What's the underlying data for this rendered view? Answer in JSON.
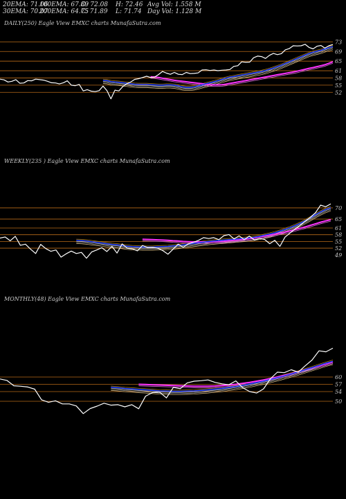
{
  "stats": {
    "row1": [
      "20EMA: 71.06",
      "100EMA: 67.89",
      "O: 72.08",
      "H: 72.46",
      "Avg Vol: 1.558  M"
    ],
    "row2": [
      "30EMA: 70.07",
      "200EMA: 64.75",
      "C: 71.89",
      "L: 71.74",
      "Day Vol: 1.128 M"
    ]
  },
  "colors": {
    "background": "#000000",
    "price": "#ffffff",
    "ema_short": "#1e3cff",
    "ema_long": "#ff33ff",
    "level": "#b86a18"
  },
  "chart_data": [
    {
      "type": "line",
      "title": "DAILY(250) Eagle  View  EMXC charts MunafaSutra.com",
      "ylim": [
        27,
        76
      ],
      "yticks": [
        73,
        69,
        65,
        61,
        58,
        55,
        52
      ],
      "levels": [
        73,
        69,
        65,
        61,
        58,
        55,
        52
      ],
      "series": [
        {
          "role": "price",
          "values": [
            57.5,
            57.2,
            56.3,
            56.6,
            57.3,
            55.8,
            55.9,
            56.9,
            56.8,
            57.5,
            57.3,
            57.1,
            56.6,
            56.0,
            55.9,
            55.5,
            56.0,
            56.8,
            55.0,
            54.8,
            55.3,
            52.6,
            53.1,
            52.5,
            52.3,
            52.7,
            54.6,
            52.7,
            49.3,
            52.9,
            52.6,
            54.4,
            55.6,
            56.3,
            57.4,
            57.7,
            58.2,
            58.7,
            58.2,
            58.3,
            59.4,
            60.7,
            60.0,
            59.5,
            60.3,
            59.5,
            59.4,
            60.3,
            59.8,
            59.9,
            60.1,
            61.3,
            61.4,
            61.1,
            61.3,
            61.0,
            61.2,
            61.3,
            61.5,
            62.8,
            63.1,
            64.7,
            64.5,
            64.6,
            66.4,
            67.1,
            66.9,
            66.1,
            67.4,
            68.2,
            67.7,
            68.1,
            69.7,
            70.2,
            71.4,
            71.3,
            71.4,
            72.0,
            70.7,
            70.1,
            71.2,
            71.5,
            70.4,
            71.4,
            71.9
          ]
        },
        {
          "role": "ema_short",
          "values": [
            57.0,
            56.9,
            56.5,
            56.3,
            56.2,
            56.0,
            55.8,
            55.6,
            55.4,
            55.3,
            55.3,
            55.3,
            55.2,
            55.1,
            55.0,
            55.0,
            55.1,
            55.1,
            55.0,
            54.7,
            54.3,
            54.1,
            54.1,
            54.3,
            54.7,
            55.1,
            55.6,
            56.0,
            56.4,
            56.9,
            57.4,
            57.9,
            58.3,
            58.6,
            58.9,
            59.2,
            59.5,
            59.8,
            60.1,
            60.4,
            60.7,
            61.1,
            61.6,
            62.1,
            62.7,
            63.3,
            64.0,
            64.7,
            65.4,
            66.1,
            66.8,
            67.5,
            68.2,
            68.7,
            69.1,
            69.5,
            70.1,
            70.6,
            71.06
          ]
        },
        {
          "role": "ema_long",
          "values": [
            58.5,
            58.4,
            58.2,
            57.9,
            57.6,
            57.3,
            57.0,
            56.8,
            56.6,
            56.4,
            56.2,
            56.0,
            55.8,
            55.6,
            55.4,
            55.2,
            55.1,
            55.1,
            55.2,
            55.4,
            55.7,
            56.0,
            56.3,
            56.6,
            56.9,
            57.2,
            57.5,
            57.8,
            58.1,
            58.4,
            58.7,
            59.0,
            59.3,
            59.6,
            59.9,
            60.2,
            60.5,
            60.8,
            61.2,
            61.6,
            62.0,
            62.3,
            62.7,
            63.1,
            63.5,
            64.1,
            64.75
          ]
        }
      ]
    },
    {
      "type": "line",
      "title": "WEEKLY(235                ) Eagle  View  EMXC charts MunafaSutra.com",
      "ylim": [
        35,
        74
      ],
      "yticks": [
        70,
        65,
        61,
        58,
        55,
        52,
        49
      ],
      "levels": [
        70,
        65,
        61,
        58,
        55,
        52
      ],
      "series": [
        {
          "role": "price",
          "values": [
            56.5,
            57.0,
            55.3,
            57.3,
            53.3,
            53.8,
            51.6,
            49.6,
            53.7,
            51.8,
            50.6,
            51.2,
            48.0,
            49.5,
            50.7,
            49.6,
            50.1,
            47.5,
            50.3,
            51.2,
            52.2,
            50.5,
            52.8,
            49.8,
            53.9,
            52.0,
            51.7,
            50.8,
            53.2,
            52.3,
            52.4,
            52.0,
            50.9,
            49.3,
            51.5,
            53.8,
            52.4,
            53.9,
            54.6,
            55.5,
            56.7,
            56.3,
            56.7,
            55.8,
            57.6,
            58.1,
            56.1,
            57.5,
            55.8,
            57.4,
            55.6,
            56.3,
            55.9,
            54.0,
            55.5,
            52.8,
            56.9,
            58.8,
            60.6,
            62.2,
            64.1,
            65.8,
            67.8,
            71.2,
            70.5,
            71.8
          ]
        },
        {
          "role": "ema_short",
          "values": [
            55.5,
            55.4,
            55.2,
            54.9,
            54.6,
            54.3,
            54.0,
            53.7,
            53.5,
            53.2,
            52.9,
            52.7,
            52.6,
            52.5,
            52.5,
            52.5,
            52.6,
            52.7,
            52.8,
            53.0,
            53.2,
            53.5,
            53.8,
            54.1,
            54.4,
            54.7,
            55.0,
            55.2,
            55.4,
            55.6,
            55.8,
            56.0,
            56.2,
            56.4,
            56.6,
            56.9,
            57.3,
            57.8,
            58.3,
            58.9,
            59.6,
            60.4,
            61.2,
            62.1,
            63.1,
            64.3,
            65.6,
            67.0,
            68.2,
            69.3,
            70.07
          ]
        },
        {
          "role": "ema_long",
          "values": [
            56.0,
            55.9,
            55.8,
            55.7,
            55.6,
            55.5,
            55.3,
            55.2,
            55.0,
            54.9,
            54.8,
            54.8,
            54.8,
            54.8,
            54.9,
            55.0,
            55.1,
            55.3,
            55.5,
            55.7,
            56.0,
            56.3,
            56.6,
            57.0,
            57.4,
            57.8,
            58.2,
            58.7,
            59.2,
            59.7,
            60.3,
            60.9,
            61.5,
            62.2,
            62.9,
            63.6,
            64.2,
            64.75
          ]
        }
      ]
    },
    {
      "type": "line",
      "title": "MONTHLY(48) Eagle  View  EMXC charts MunafaSutra.com",
      "ylim": [
        40,
        80
      ],
      "yticks": [
        60,
        57,
        54,
        50
      ],
      "levels": [
        60,
        57,
        54,
        50
      ],
      "series": [
        {
          "role": "price",
          "values": [
            59.2,
            58.6,
            56.4,
            56.2,
            55.9,
            55.0,
            50.6,
            49.6,
            50.2,
            48.9,
            48.9,
            48.1,
            44.9,
            47.0,
            48.0,
            49.2,
            48.4,
            48.6,
            47.7,
            48.6,
            46.9,
            52.1,
            53.6,
            53.8,
            51.4,
            55.7,
            55.2,
            57.6,
            58.3,
            58.5,
            58.8,
            57.8,
            57.2,
            56.8,
            58.4,
            55.6,
            54.0,
            53.4,
            55.1,
            59.3,
            62.0,
            61.8,
            63.0,
            62.0,
            64.6,
            67.0,
            70.8,
            70.4,
            71.89
          ]
        },
        {
          "role": "ema_short",
          "values": [
            55.8,
            55.6,
            55.3,
            55.1,
            54.9,
            54.7,
            54.5,
            54.3,
            54.2,
            54.1,
            54.1,
            54.2,
            54.3,
            54.5,
            54.7,
            55.0,
            55.3,
            55.7,
            56.1,
            56.6,
            57.1,
            57.7,
            58.3,
            59.0,
            59.7,
            60.5,
            61.3,
            62.1,
            63.0,
            63.9,
            64.8,
            65.7,
            66.5
          ]
        },
        {
          "role": "ema_long",
          "values": [
            57.0,
            56.9,
            56.8,
            56.7,
            56.6,
            56.5,
            56.4,
            56.3,
            56.2,
            56.2,
            56.2,
            56.3,
            56.5,
            56.7,
            57.0,
            57.4,
            57.8,
            58.3,
            58.8,
            59.4,
            60.0,
            60.7,
            61.4,
            62.2,
            63.0,
            63.8,
            64.6,
            65.4,
            66.2
          ]
        }
      ]
    }
  ]
}
